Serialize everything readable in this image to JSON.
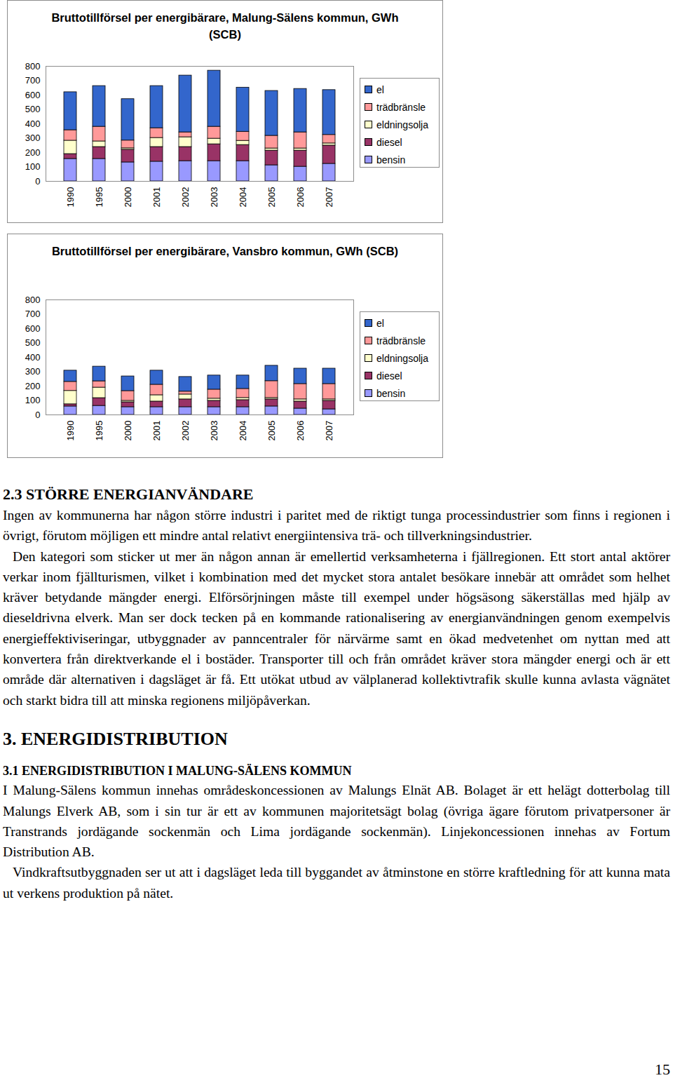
{
  "chart_data": [
    {
      "type": "bar",
      "stacked": true,
      "title": "Bruttotillförsel per energibärare, Malung-Sälens kommun, GWh (SCB)",
      "categories": [
        "1990",
        "1995",
        "2000",
        "2001",
        "2002",
        "2003",
        "2004",
        "2005",
        "2006",
        "2007"
      ],
      "series": [
        {
          "name": "el",
          "color": "#3366cc",
          "values": [
            264,
            283,
            288,
            293,
            395,
            390,
            307,
            312,
            302,
            312
          ]
        },
        {
          "name": "trädbränsle",
          "color": "#ff9999",
          "values": [
            73,
            102,
            54,
            68,
            34,
            83,
            63,
            88,
            112,
            59
          ]
        },
        {
          "name": "eldningsolja",
          "color": "#ffffcc",
          "values": [
            93,
            39,
            10,
            63,
            68,
            39,
            29,
            15,
            15,
            15
          ]
        },
        {
          "name": "diesel",
          "color": "#993366",
          "values": [
            34,
            83,
            88,
            102,
            98,
            117,
            112,
            102,
            112,
            127
          ]
        },
        {
          "name": "bensin",
          "color": "#9999ff",
          "values": [
            156,
            156,
            132,
            137,
            141,
            141,
            141,
            112,
            102,
            122
          ]
        }
      ],
      "ylim": [
        0,
        800
      ],
      "yticks": [
        0,
        100,
        200,
        300,
        400,
        500,
        600,
        700,
        800
      ],
      "grid": false,
      "legend": "right"
    },
    {
      "type": "bar",
      "stacked": true,
      "title": "Bruttotillförsel per energibärare, Vansbro kommun, GWh (SCB)",
      "categories": [
        "1990",
        "1995",
        "2000",
        "2001",
        "2002",
        "2003",
        "2004",
        "2005",
        "2006",
        "2007"
      ],
      "series": [
        {
          "name": "el",
          "color": "#3366cc",
          "values": [
            78,
            102,
            102,
            98,
            102,
            98,
            93,
            107,
            107,
            107
          ]
        },
        {
          "name": "trädbränsle",
          "color": "#ff9999",
          "values": [
            63,
            44,
            68,
            73,
            20,
            63,
            63,
            117,
            107,
            107
          ]
        },
        {
          "name": "eldningsolja",
          "color": "#ffffcc",
          "values": [
            93,
            73,
            10,
            44,
            34,
            15,
            15,
            10,
            15,
            10
          ]
        },
        {
          "name": "diesel",
          "color": "#993366",
          "values": [
            15,
            54,
            34,
            39,
            54,
            44,
            49,
            49,
            49,
            59
          ]
        },
        {
          "name": "bensin",
          "color": "#9999ff",
          "values": [
            59,
            63,
            54,
            54,
            54,
            54,
            54,
            59,
            44,
            39
          ]
        }
      ],
      "ylim": [
        0,
        800
      ],
      "yticks": [
        0,
        100,
        200,
        300,
        400,
        500,
        600,
        700,
        800
      ],
      "grid": false,
      "legend": "right"
    }
  ],
  "document": {
    "section_2_3": {
      "heading": "2.3 STÖRRE ENERGIANVÄNDARE",
      "paragraphs": [
        "Ingen av kommunerna har någon större industri i paritet med de riktigt tunga processindustrier som finns i regionen i övrigt, förutom möjligen ett mindre antal relativt energiintensiva trä- och tillverkningsindustrier.",
        "Den kategori som sticker ut mer än någon annan är emellertid verksamheterna i fjällregionen. Ett stort antal aktörer verkar inom fjällturismen, vilket i kombination med det mycket stora antalet besökare innebär att området som helhet kräver betydande mängder energi. Elförsörjningen måste till exempel under högsäsong säkerställas med hjälp av dieseldrivna elverk. Man ser dock tecken på en kommande rationalisering av energianvändningen genom exempelvis energieffektiviseringar, utbyggnader av panncentraler för närvärme samt en ökad medvetenhet om nyttan med att konvertera från direktverkande el i bostäder. Transporter till och från området kräver stora mängder energi och är ett område där alternativen i dagsläget är få. Ett utökat utbud av välplanerad kollektivtrafik skulle kunna avlasta vägnätet och starkt bidra till att minska regionens miljöpåverkan."
      ]
    },
    "section_3": {
      "heading": "3. ENERGIDISTRIBUTION"
    },
    "section_3_1": {
      "heading": "3.1 ENERGIDISTRIBUTION I MALUNG-SÄLENS KOMMUN",
      "paragraphs": [
        "I Malung-Sälens kommun innehas områdeskoncessionen av Malungs Elnät AB. Bolaget är ett helägt dotterbolag till Malungs Elverk AB, som i sin tur är ett av kommunen majoritetsägt bolag (övriga ägare förutom privatpersoner är Transtrands jordägande sockenmän och Lima jordägande sockenmän). Linjekoncessionen innehas av Fortum Distribution AB.",
        "Vindkraftsutbyggnaden ser ut att i dagsläget leda till byggandet av åtminstone en större kraftledning för att kunna mata ut verkens produktion på nätet."
      ]
    },
    "page_number": "15"
  }
}
